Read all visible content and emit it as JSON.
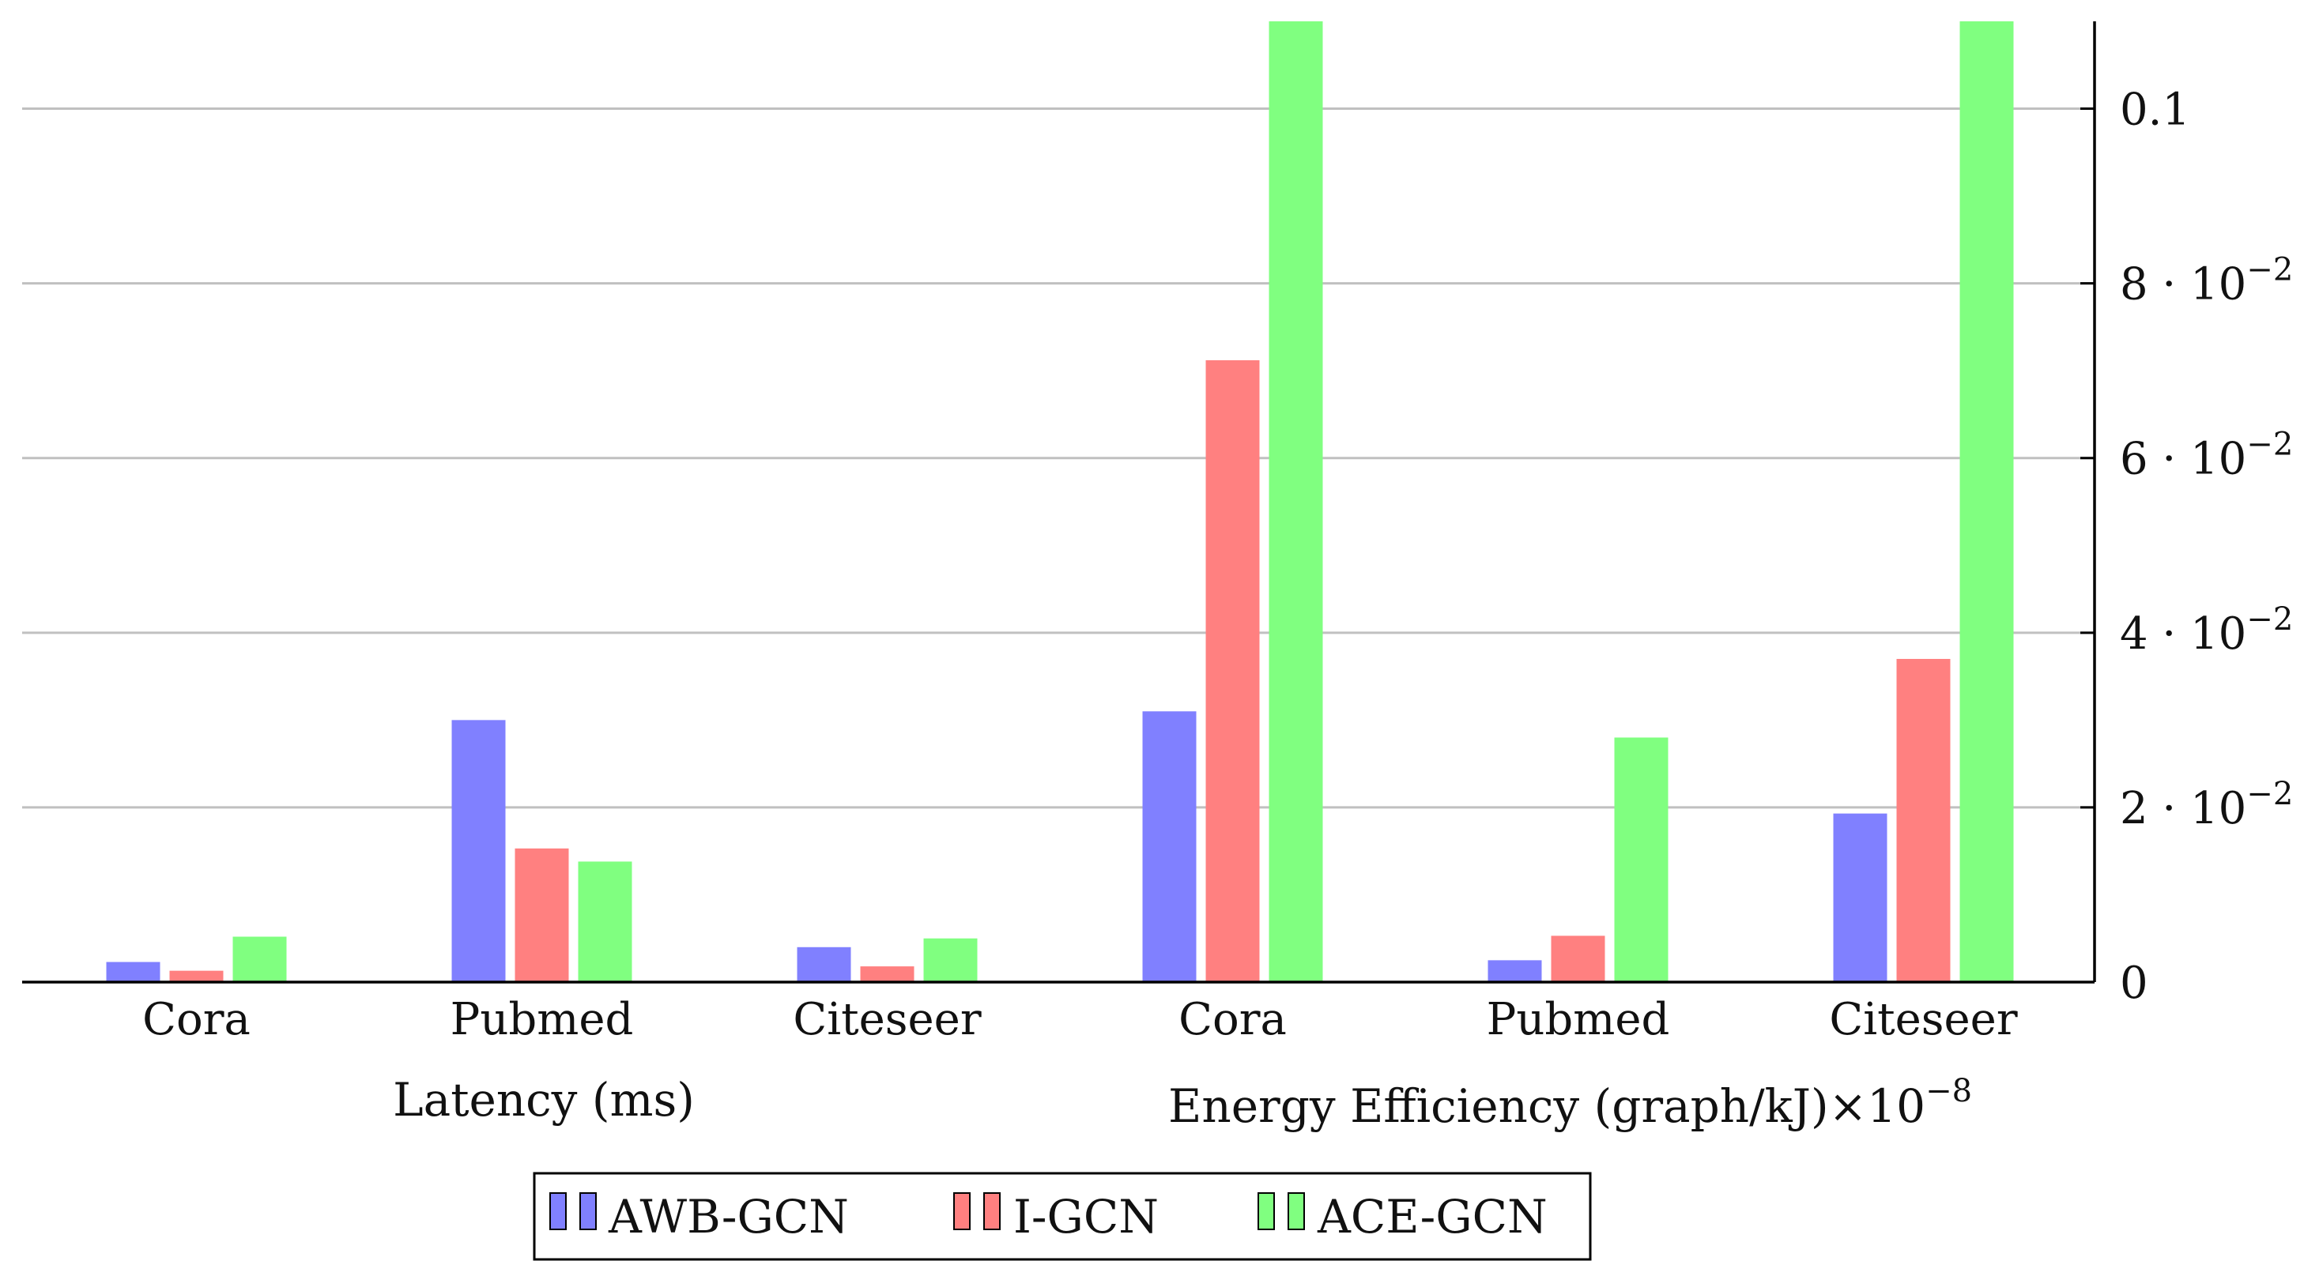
{
  "chart_data": {
    "type": "bar",
    "categories": [
      "Cora",
      "Pubmed",
      "Citeseer",
      "Cora",
      "Pubmed",
      "Citeseer"
    ],
    "group_labels": [
      "Latency (ms)",
      "Energy Efficiency (graph/kJ)×10",
      "−8"
    ],
    "series": [
      {
        "name": "AWB-GCN",
        "color": "#8080ff",
        "values": [
          0.0023,
          0.03,
          0.004,
          0.031,
          0.0025,
          0.0193
        ]
      },
      {
        "name": "I-GCN",
        "color": "#ff8080",
        "values": [
          0.0013,
          0.0153,
          0.0018,
          0.0712,
          0.0053,
          0.037
        ]
      },
      {
        "name": "ACE-GCN",
        "color": "#80ff80",
        "values": [
          0.0052,
          0.0138,
          0.005,
          0.11,
          0.028,
          0.11
        ]
      }
    ],
    "ylim": [
      0,
      0.11
    ],
    "y_ticks": [
      {
        "value": 0,
        "label": "0"
      },
      {
        "value": 0.02,
        "label": "2 · 10",
        "exp": "−2"
      },
      {
        "value": 0.04,
        "label": "4 · 10",
        "exp": "−2"
      },
      {
        "value": 0.06,
        "label": "6 · 10",
        "exp": "−2"
      },
      {
        "value": 0.08,
        "label": "8 · 10",
        "exp": "−2"
      },
      {
        "value": 0.1,
        "label": "0.1"
      }
    ],
    "y_axis_side": "right",
    "grid": true,
    "legend_position": "bottom-center"
  }
}
